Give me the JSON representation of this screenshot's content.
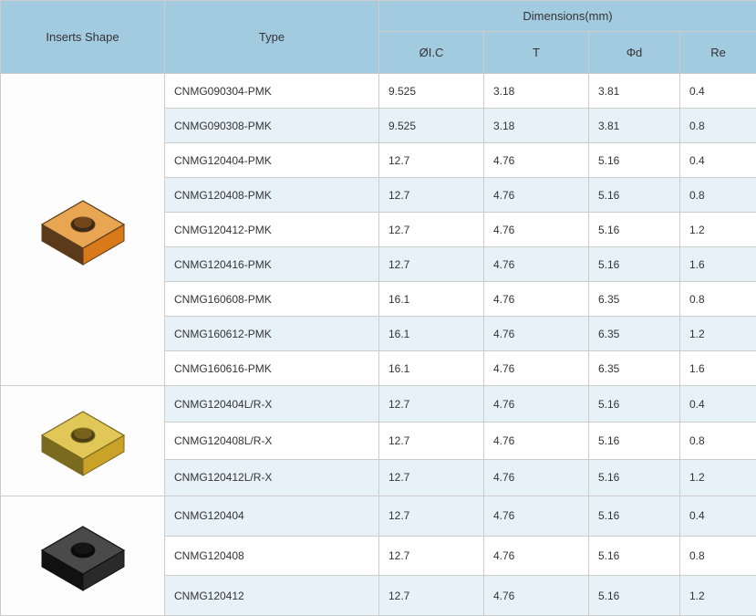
{
  "headers": {
    "shape": "Inserts Shape",
    "type": "Type",
    "dims": "Dimensions(mm)",
    "ic": "ØI.C",
    "t": "T",
    "d": "Φd",
    "re": "Re"
  },
  "groups": [
    {
      "shape_id": "orange-insert",
      "rows": [
        {
          "type": "CNMG090304-PMK",
          "ic": "9.525",
          "t": "3.18",
          "d": "3.81",
          "re": "0.4",
          "alt": false
        },
        {
          "type": "CNMG090308-PMK",
          "ic": "9.525",
          "t": "3.18",
          "d": "3.81",
          "re": "0.8",
          "alt": true
        },
        {
          "type": "CNMG120404-PMK",
          "ic": "12.7",
          "t": "4.76",
          "d": "5.16",
          "re": "0.4",
          "alt": false
        },
        {
          "type": "CNMG120408-PMK",
          "ic": "12.7",
          "t": "4.76",
          "d": "5.16",
          "re": "0.8",
          "alt": true
        },
        {
          "type": "CNMG120412-PMK",
          "ic": "12.7",
          "t": "4.76",
          "d": "5.16",
          "re": "1.2",
          "alt": false
        },
        {
          "type": "CNMG120416-PMK",
          "ic": "12.7",
          "t": "4.76",
          "d": "5.16",
          "re": "1.6",
          "alt": true
        },
        {
          "type": "CNMG160608-PMK",
          "ic": "16.1",
          "t": "4.76",
          "d": "6.35",
          "re": "0.8",
          "alt": false
        },
        {
          "type": "CNMG160612-PMK",
          "ic": "16.1",
          "t": "4.76",
          "d": "6.35",
          "re": "1.2",
          "alt": true
        },
        {
          "type": "CNMG160616-PMK",
          "ic": "16.1",
          "t": "4.76",
          "d": "6.35",
          "re": "1.6",
          "alt": false
        }
      ]
    },
    {
      "shape_id": "yellow-insert",
      "rows": [
        {
          "type": "CNMG120404L/R-X",
          "ic": "12.7",
          "t": "4.76",
          "d": "5.16",
          "re": "0.4",
          "alt": true
        },
        {
          "type": "CNMG120408L/R-X",
          "ic": "12.7",
          "t": "4.76",
          "d": "5.16",
          "re": "0.8",
          "alt": false
        },
        {
          "type": "CNMG120412L/R-X",
          "ic": "12.7",
          "t": "4.76",
          "d": "5.16",
          "re": "1.2",
          "alt": true
        }
      ]
    },
    {
      "shape_id": "black-insert",
      "rows": [
        {
          "type": "CNMG120404",
          "ic": "12.7",
          "t": "4.76",
          "d": "5.16",
          "re": "0.4",
          "alt": true
        },
        {
          "type": "CNMG120408",
          "ic": "12.7",
          "t": "4.76",
          "d": "5.16",
          "re": "0.8",
          "alt": false
        },
        {
          "type": "CNMG120412",
          "ic": "12.7",
          "t": "4.76",
          "d": "5.16",
          "re": "1.2",
          "alt": true
        }
      ]
    }
  ],
  "shape_styles": {
    "orange-insert": {
      "body": "#d97a1a",
      "top": "#e8a552",
      "edge": "#5a3a1a",
      "hole": "#3a2a18",
      "size": 140
    },
    "yellow-insert": {
      "body": "#c9a227",
      "top": "#e0c757",
      "edge": "#7a6a20",
      "hole": "#4a3f15",
      "size": 120
    },
    "black-insert": {
      "body": "#2a2a2a",
      "top": "#4a4a4a",
      "edge": "#111111",
      "hole": "#0a0a0a",
      "size": 130
    }
  }
}
